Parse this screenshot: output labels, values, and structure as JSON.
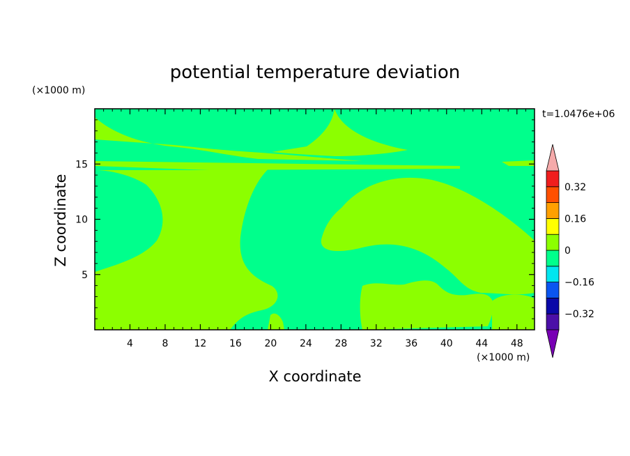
{
  "chart_data": {
    "type": "heatmap",
    "title": "potential temperature deviation",
    "xlabel": "X coordinate",
    "ylabel": "Z coordinate",
    "x_unit": "(×1000 m)",
    "y_unit": "(×1000 m)",
    "time_label": "t=1.0476e+06",
    "xlim": [
      0,
      50
    ],
    "ylim": [
      0,
      20
    ],
    "x_ticks": [
      4,
      8,
      12,
      16,
      20,
      24,
      28,
      32,
      36,
      40,
      44,
      48
    ],
    "y_ticks": [
      5,
      10,
      15
    ],
    "colorbar": {
      "levels": [
        -0.4,
        -0.32,
        -0.24,
        -0.16,
        -0.08,
        0,
        0.08,
        0.16,
        0.24,
        0.32,
        0.4
      ],
      "labels": [
        "0.32",
        "0.16",
        "0",
        "−0.16",
        "−0.32"
      ],
      "label_values": [
        0.32,
        0.16,
        0,
        -0.16,
        -0.32
      ],
      "colors": [
        "#4b0fa8",
        "#0a08a8",
        "#0a55f0",
        "#00e6f0",
        "#00ff8c",
        "#8cff00",
        "#ffff00",
        "#ffa000",
        "#ff5000",
        "#f01e1e"
      ],
      "over_color": "#f5aaaa",
      "under_color": "#7800b4"
    },
    "background_value_range": [
      -0.08,
      0
    ],
    "regions_value_range": [
      0,
      0.08
    ],
    "colors": {
      "negative_near_zero": "#00ff8c",
      "positive_near_zero": "#8cff00"
    }
  }
}
